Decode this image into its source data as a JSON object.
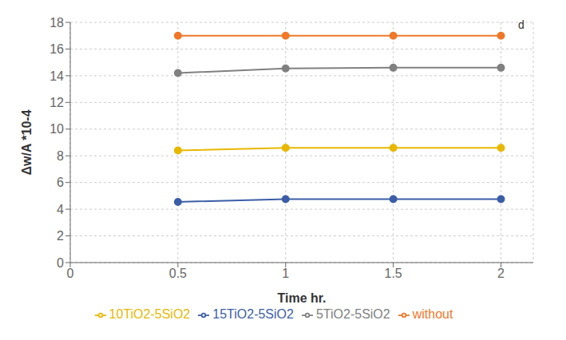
{
  "chart_data": {
    "type": "line",
    "x": [
      0.5,
      1.0,
      1.5,
      2.0
    ],
    "series": [
      {
        "name": "without",
        "color": "#F07828",
        "marker": "circle",
        "values": [
          17.0,
          17.0,
          17.0,
          17.0
        ]
      },
      {
        "name": "5TiO2-5SiO2",
        "color": "#808080",
        "marker": "circle",
        "values": [
          14.2,
          14.55,
          14.6,
          14.6
        ]
      },
      {
        "name": "10TiO2-5SiO2",
        "color": "#E8B800",
        "marker": "circle",
        "values": [
          8.4,
          8.6,
          8.6,
          8.6
        ]
      },
      {
        "name": "15TiO2-5SiO2",
        "color": "#3B5EA6",
        "marker": "circle",
        "values": [
          4.55,
          4.75,
          4.75,
          4.75
        ]
      }
    ],
    "x_label": "Time hr.",
    "y_label": "Δw/A *10-4",
    "xlim": [
      0,
      2.15
    ],
    "ylim": [
      0,
      18
    ],
    "xticks": [
      0,
      0.5,
      1,
      1.5,
      2
    ],
    "yticks": [
      0,
      2,
      4,
      6,
      8,
      10,
      12,
      14,
      16,
      18
    ],
    "annotations": [
      {
        "text": "d",
        "x": 2.08,
        "y": 17.5
      }
    ],
    "grid": true,
    "legend": "bottom"
  }
}
